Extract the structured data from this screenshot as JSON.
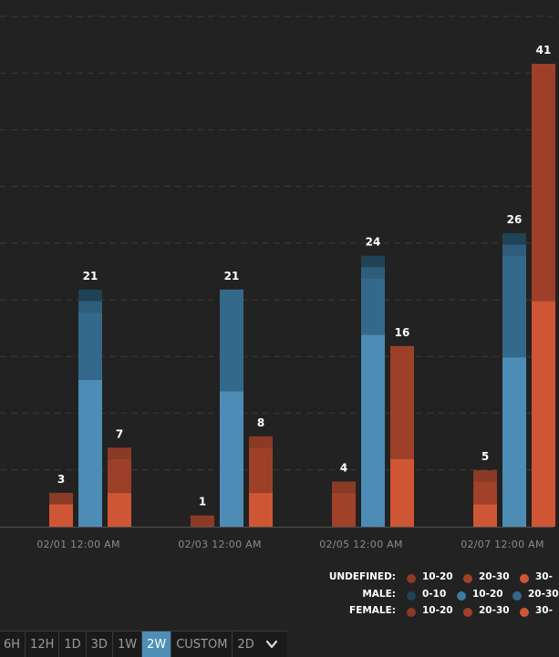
{
  "chart_data": {
    "type": "bar",
    "categories": [
      "02/01 12:00 AM",
      "02/03 12:00 AM",
      "02/05 12:00 AM",
      "02/07 12:00 AM"
    ],
    "ylim": [
      0,
      41
    ],
    "grid": true,
    "legend_position": "bottom-right",
    "groups": [
      {
        "name": "UNDEFINED",
        "totals": [
          3,
          1,
          4,
          5
        ],
        "segments": [
          {
            "name": "10-20",
            "color": "#8b3a26",
            "values": [
              1,
              1,
              1,
              1
            ]
          },
          {
            "name": "20-30",
            "color": "#a0412a",
            "values": [
              0,
              0,
              3,
              2
            ]
          },
          {
            "name": "30-",
            "color": "#cf5634",
            "values": [
              2,
              0,
              0,
              2
            ]
          }
        ]
      },
      {
        "name": "MALE",
        "totals": [
          21,
          21,
          24,
          26
        ],
        "segments": [
          {
            "name": "0-10",
            "color": "#1f4256",
            "values": [
              1,
              0,
              1,
              1
            ]
          },
          {
            "name": "10-20",
            "color": "#2d5d7a",
            "values": [
              1,
              0,
              1,
              1
            ]
          },
          {
            "name": "20-30",
            "color": "#34698b",
            "values": [
              6,
              9,
              5,
              9
            ]
          },
          {
            "name": "30-",
            "color": "#4d8db5",
            "values": [
              13,
              12,
              17,
              15
            ]
          }
        ]
      },
      {
        "name": "FEMALE",
        "totals": [
          7,
          8,
          16,
          41
        ],
        "segments": [
          {
            "name": "10-20",
            "color": "#8b3a26",
            "values": [
              1,
              1,
              0,
              0
            ]
          },
          {
            "name": "20-30",
            "color": "#9e4029",
            "values": [
              3,
              4,
              10,
              21
            ]
          },
          {
            "name": "30-",
            "color": "#cf5634",
            "values": [
              3,
              3,
              6,
              20
            ]
          }
        ]
      }
    ]
  },
  "legend": [
    {
      "label": "UNDEFINED:",
      "items": [
        {
          "text": "10-20",
          "color": "#8b3a26"
        },
        {
          "text": "20-30",
          "color": "#a0412a"
        },
        {
          "text": "30-",
          "color": "#cf5634"
        }
      ]
    },
    {
      "label": "MALE:",
      "items": [
        {
          "text": "0-10",
          "color": "#1f4256"
        },
        {
          "text": "10-20",
          "color": "#3e7aa1"
        },
        {
          "text": "20-30",
          "color": "#34698b"
        }
      ]
    },
    {
      "label": "FEMALE:",
      "items": [
        {
          "text": "10-20",
          "color": "#8b3a26"
        },
        {
          "text": "20-30",
          "color": "#a0412a"
        },
        {
          "text": "30-",
          "color": "#cf5634"
        }
      ]
    }
  ],
  "toolbar": {
    "ranges": [
      "6H",
      "12H",
      "1D",
      "3D",
      "1W",
      "2W",
      "CUSTOM"
    ],
    "active": "2W",
    "select_value": "2D"
  }
}
